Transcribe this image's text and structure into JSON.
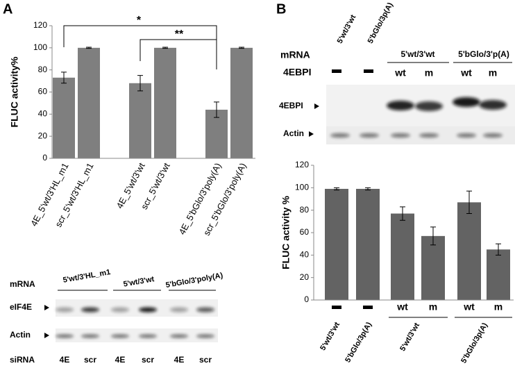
{
  "panels": [
    "A",
    "B"
  ],
  "chart_data": [
    {
      "type": "bar",
      "y_label": "FLUC activity%",
      "categories": [
        "4E_5'wt/3'HL_m1",
        "scr_5'wt/3'HL_m1",
        "4E_5'wt/3'wt",
        "scr_5'wt/3'wt",
        "4E_5'bGlo/3'poly(A)",
        "scr_5'bGlo/3'poly(A)"
      ],
      "values": [
        73,
        100,
        68,
        100,
        44,
        100
      ],
      "errors": [
        5,
        0.5,
        7,
        0.5,
        7,
        0.5
      ],
      "color": "#7f7f7f",
      "ylim": [
        0,
        120
      ],
      "yticks": [
        0,
        20,
        40,
        60,
        80,
        100,
        120
      ],
      "annotations": [
        "*",
        "**"
      ]
    },
    {
      "type": "bar",
      "y_label": "FLUC activity %",
      "categories": [
        null,
        null,
        "wt",
        "m",
        "wt",
        "m"
      ],
      "x_groups": [
        "5'wt/3'wt",
        "5'bGlo/3p(A)",
        "5'wt/3'wt",
        "5'bGlo/3p(A)"
      ],
      "values": [
        99,
        99,
        77,
        57,
        87,
        45
      ],
      "errors": [
        1,
        1,
        6,
        8,
        10,
        5
      ],
      "color": "#636363",
      "ylim": [
        0,
        120
      ],
      "yticks": [
        0,
        20,
        40,
        60,
        80,
        100,
        120
      ]
    }
  ],
  "blot_a": {
    "mrna_label": "mRNA",
    "mrna_groups": [
      "5'wt/3'HL_m1",
      "5'wt/3'wt",
      "5'bGlo/3'poly(A)"
    ],
    "rows": [
      "eIF4E",
      "Actin"
    ],
    "sirna_label": "siRNA",
    "sirna": [
      "4E",
      "scr",
      "4E",
      "scr",
      "4E",
      "scr"
    ]
  },
  "blot_b": {
    "top_labels": [
      "5'wt/3'wt",
      "5'bGlo/3p(A)"
    ],
    "mrna_label": "mRNA",
    "mrna_groups": [
      "5'wt/3'wt",
      "5'bGlo/3'p(A)"
    ],
    "construct_label": "4EBPI",
    "constructs": [
      "wt",
      "m",
      "wt",
      "m"
    ],
    "rows": [
      "4EBPI",
      "Actin"
    ]
  }
}
